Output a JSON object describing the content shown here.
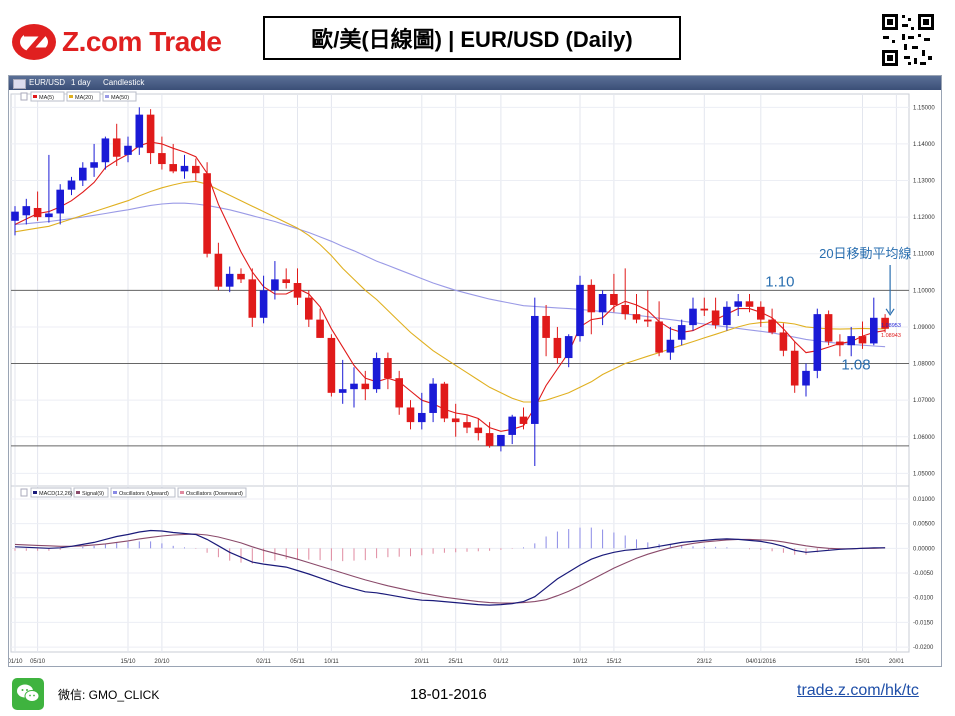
{
  "header": {
    "brand": "Z.com Trade",
    "title": "歐/美(日線圖) | EUR/USD  (Daily)"
  },
  "toolbar": {
    "symbol": "EUR/USD",
    "period": "1 day",
    "style": "Candlestick"
  },
  "colors": {
    "up": "#1a1ad6",
    "down": "#e01a1a",
    "ma5": "#e01a1a",
    "ma20": "#e0b020",
    "ma50": "#9a9ae6",
    "macd": "#1a1a7a",
    "signal": "#8a4a6a",
    "osc_up": "#8a8ae6",
    "osc_down": "#e08aa0",
    "annotation": "#2a6fb0"
  },
  "chart_data": [
    {
      "type": "candlestick",
      "legend": [
        "MA(5)",
        "MA(20)",
        "MA(50)"
      ],
      "ylim": [
        1.046,
        1.152
      ],
      "y_ticks": [
        1.05,
        1.06,
        1.07,
        1.08,
        1.09,
        1.1,
        1.11,
        1.12,
        1.13,
        1.14,
        1.15
      ],
      "y_tick_labels": [
        "1.05000",
        "1.06000",
        "1.07000",
        "1.08000",
        "1.09000",
        "1.10000",
        "1.11000",
        "1.12000",
        "1.13000",
        "1.14000",
        "1.15000"
      ],
      "x_tick_labels": [
        {
          "label": "01/10",
          "index": 0
        },
        {
          "label": "05/10",
          "index": 2
        },
        {
          "label": "15/10",
          "index": 10
        },
        {
          "label": "20/10",
          "index": 13
        },
        {
          "label": "02/11",
          "index": 22
        },
        {
          "label": "05/11",
          "index": 25
        },
        {
          "label": "10/11",
          "index": 28
        },
        {
          "label": "20/11",
          "index": 36
        },
        {
          "label": "25/11",
          "index": 39
        },
        {
          "label": "01/12",
          "index": 43
        },
        {
          "label": "10/12",
          "index": 50
        },
        {
          "label": "15/12",
          "index": 53
        },
        {
          "label": "23/12",
          "index": 61
        },
        {
          "label": "04/01/2016",
          "index": 66
        },
        {
          "label": "15/01",
          "index": 75
        },
        {
          "label": "20/01",
          "index": 78
        }
      ],
      "candles": [
        [
          1.119,
          1.123,
          1.115,
          1.1215
        ],
        [
          1.1205,
          1.125,
          1.118,
          1.123
        ],
        [
          1.1225,
          1.127,
          1.119,
          1.12
        ],
        [
          1.12,
          1.137,
          1.1185,
          1.121
        ],
        [
          1.121,
          1.129,
          1.118,
          1.1275
        ],
        [
          1.1275,
          1.131,
          1.126,
          1.13
        ],
        [
          1.13,
          1.135,
          1.1285,
          1.1335
        ],
        [
          1.1335,
          1.14,
          1.131,
          1.135
        ],
        [
          1.135,
          1.142,
          1.133,
          1.1415
        ],
        [
          1.1415,
          1.1455,
          1.134,
          1.1365
        ],
        [
          1.137,
          1.142,
          1.135,
          1.1395
        ],
        [
          1.139,
          1.15,
          1.137,
          1.148
        ],
        [
          1.148,
          1.1495,
          1.1345,
          1.1375
        ],
        [
          1.1375,
          1.142,
          1.133,
          1.1345
        ],
        [
          1.1345,
          1.14,
          1.132,
          1.1325
        ],
        [
          1.1325,
          1.137,
          1.1305,
          1.134
        ],
        [
          1.134,
          1.136,
          1.13,
          1.132
        ],
        [
          1.132,
          1.135,
          1.109,
          1.11
        ],
        [
          1.11,
          1.113,
          1.1,
          1.101
        ],
        [
          1.101,
          1.1065,
          1.0995,
          1.1045
        ],
        [
          1.1045,
          1.106,
          1.102,
          1.103
        ],
        [
          1.103,
          1.106,
          1.09,
          1.0925
        ],
        [
          1.0925,
          1.104,
          1.091,
          1.1
        ],
        [
          1.1,
          1.108,
          1.0975,
          1.103
        ],
        [
          1.103,
          1.106,
          1.1005,
          1.102
        ],
        [
          1.102,
          1.106,
          1.096,
          1.098
        ],
        [
          1.098,
          1.1,
          1.09,
          1.092
        ],
        [
          1.092,
          1.095,
          1.087,
          1.087
        ],
        [
          1.087,
          1.088,
          1.071,
          1.072
        ],
        [
          1.072,
          1.081,
          1.069,
          1.073
        ],
        [
          1.073,
          1.079,
          1.068,
          1.0745
        ],
        [
          1.0745,
          1.078,
          1.07,
          1.073
        ],
        [
          1.073,
          1.083,
          1.072,
          1.0815
        ],
        [
          1.0815,
          1.083,
          1.073,
          1.076
        ],
        [
          1.076,
          1.078,
          1.066,
          1.068
        ],
        [
          1.068,
          1.07,
          1.062,
          1.064
        ],
        [
          1.064,
          1.072,
          1.062,
          1.0665
        ],
        [
          1.0665,
          1.076,
          1.064,
          1.0745
        ],
        [
          1.0745,
          1.075,
          1.064,
          1.065
        ],
        [
          1.065,
          1.069,
          1.06,
          1.064
        ],
        [
          1.064,
          1.066,
          1.061,
          1.0625
        ],
        [
          1.0625,
          1.065,
          1.059,
          1.061
        ],
        [
          1.061,
          1.064,
          1.057,
          1.0575
        ],
        [
          1.0575,
          1.06,
          1.056,
          1.0605
        ],
        [
          1.0605,
          1.066,
          1.058,
          1.0655
        ],
        [
          1.0655,
          1.068,
          1.062,
          1.0635
        ],
        [
          1.0635,
          1.098,
          1.052,
          1.093
        ],
        [
          1.093,
          1.096,
          1.082,
          1.087
        ],
        [
          1.087,
          1.09,
          1.08,
          1.0815
        ],
        [
          1.0815,
          1.088,
          1.079,
          1.0875
        ],
        [
          1.0875,
          1.104,
          1.086,
          1.1015
        ],
        [
          1.1015,
          1.103,
          1.088,
          1.094
        ],
        [
          1.094,
          1.1,
          1.0905,
          1.099
        ],
        [
          1.099,
          1.1045,
          1.094,
          1.096
        ],
        [
          1.096,
          1.106,
          1.092,
          1.0935
        ],
        [
          1.0935,
          1.099,
          1.091,
          1.092
        ],
        [
          1.092,
          1.1,
          1.09,
          1.0915
        ],
        [
          1.0915,
          1.097,
          1.082,
          1.083
        ],
        [
          1.083,
          1.09,
          1.081,
          1.0865
        ],
        [
          1.0865,
          1.092,
          1.085,
          1.0905
        ],
        [
          1.0905,
          1.098,
          1.089,
          1.095
        ],
        [
          1.095,
          1.098,
          1.093,
          1.0945
        ],
        [
          1.0945,
          1.098,
          1.0895,
          1.0905
        ],
        [
          1.0905,
          1.097,
          1.089,
          1.0955
        ],
        [
          1.0955,
          1.099,
          1.093,
          1.097
        ],
        [
          1.097,
          1.099,
          1.094,
          1.0955
        ],
        [
          1.0955,
          1.097,
          1.09,
          1.092
        ],
        [
          1.092,
          1.095,
          1.088,
          1.0885
        ],
        [
          1.0885,
          1.091,
          1.082,
          1.0835
        ],
        [
          1.0835,
          1.086,
          1.072,
          1.074
        ],
        [
          1.074,
          1.08,
          1.071,
          1.078
        ],
        [
          1.078,
          1.095,
          1.076,
          1.0935
        ],
        [
          1.0935,
          1.0945,
          1.085,
          1.086
        ],
        [
          1.086,
          1.088,
          1.082,
          1.085
        ],
        [
          1.085,
          1.09,
          1.082,
          1.0875
        ],
        [
          1.0875,
          1.0915,
          1.084,
          1.0855
        ],
        [
          1.0855,
          1.098,
          1.085,
          1.0925
        ],
        [
          1.0925,
          1.0935,
          1.0885,
          1.0895
        ]
      ],
      "ma5": [
        1.118,
        1.1195,
        1.121,
        1.1215,
        1.1228,
        1.1245,
        1.1268,
        1.1295,
        1.1335,
        1.1355,
        1.1372,
        1.1395,
        1.1405,
        1.14,
        1.1388,
        1.1378,
        1.1365,
        1.132,
        1.1235,
        1.117,
        1.1105,
        1.105,
        1.101,
        1.099,
        1.099,
        1.1005,
        1.099,
        1.0955,
        1.0895,
        1.0845,
        1.0795,
        1.076,
        1.075,
        1.076,
        1.075,
        1.0725,
        1.07,
        1.069,
        1.0675,
        1.0665,
        1.066,
        1.065,
        1.0625,
        1.0615,
        1.062,
        1.063,
        1.068,
        1.074,
        1.0785,
        1.083,
        1.09,
        1.092,
        1.0925,
        1.0955,
        1.097,
        1.096,
        1.0945,
        1.0915,
        1.0895,
        1.0885,
        1.089,
        1.0905,
        1.092,
        1.0935,
        1.095,
        1.095,
        1.094,
        1.0925,
        1.0895,
        1.086,
        1.083,
        1.0835,
        1.0845,
        1.0855,
        1.086,
        1.0875,
        1.0885,
        1.089
      ],
      "ma20": [
        1.116,
        1.1165,
        1.117,
        1.1175,
        1.1185,
        1.1195,
        1.1205,
        1.1215,
        1.1225,
        1.1235,
        1.1245,
        1.1258,
        1.127,
        1.128,
        1.1288,
        1.1295,
        1.1298,
        1.129,
        1.1275,
        1.126,
        1.1245,
        1.123,
        1.1215,
        1.12,
        1.1185,
        1.117,
        1.115,
        1.1125,
        1.1095,
        1.106,
        1.103,
        1.1,
        1.0975,
        1.0945,
        1.0915,
        1.0885,
        1.086,
        1.0835,
        1.0815,
        1.0795,
        1.0775,
        1.0755,
        1.0735,
        1.072,
        1.0705,
        1.0695,
        1.0695,
        1.07,
        1.071,
        1.072,
        1.0735,
        1.075,
        1.077,
        1.0785,
        1.08,
        1.081,
        1.082,
        1.083,
        1.084,
        1.085,
        1.086,
        1.087,
        1.088,
        1.089,
        1.09,
        1.0908,
        1.0912,
        1.0914,
        1.0912,
        1.0908,
        1.09,
        1.0897,
        1.0895,
        1.0894,
        1.0895,
        1.0896,
        1.0895,
        1.0895
      ],
      "ma50": [
        1.118,
        1.1182,
        1.1185,
        1.1188,
        1.1192,
        1.1196,
        1.12,
        1.1205,
        1.121,
        1.1215,
        1.122,
        1.1226,
        1.1232,
        1.1236,
        1.1238,
        1.1238,
        1.1236,
        1.1232,
        1.1226,
        1.122,
        1.1212,
        1.1204,
        1.1196,
        1.1188,
        1.1178,
        1.1168,
        1.1158,
        1.1146,
        1.1134,
        1.112,
        1.1108,
        1.1094,
        1.108,
        1.1068,
        1.1056,
        1.1044,
        1.1032,
        1.102,
        1.101,
        1.1,
        1.0992,
        1.0984,
        1.0976,
        1.097,
        1.0964,
        1.0958,
        1.0956,
        1.0954,
        1.0952,
        1.095,
        1.0948,
        1.0945,
        1.0942,
        1.0939,
        1.0936,
        1.0932,
        1.0928,
        1.0924,
        1.092,
        1.0916,
        1.0912,
        1.0908,
        1.0904,
        1.09,
        1.0896,
        1.0892,
        1.0888,
        1.0884,
        1.0878,
        1.0872,
        1.0866,
        1.0862,
        1.0858,
        1.0855,
        1.0852,
        1.085,
        1.0848,
        1.0846
      ],
      "horizontal_lines": [
        1.1,
        1.08,
        1.0575
      ],
      "last_price_labels": [
        "1.08953",
        "1.08943"
      ],
      "annotations": [
        {
          "text": "1.10",
          "price": 1.1,
          "index": 61
        },
        {
          "text": "1.08",
          "price": 1.08,
          "index": 68
        },
        {
          "text": "20日移動平均線",
          "price": 1.0925,
          "index": 77
        }
      ]
    },
    {
      "type": "line",
      "legend": [
        "MACD(12,26)",
        "Signal(9)",
        "Oscillators (Upward)",
        "Oscillators (Downward)"
      ],
      "ylim": [
        -0.021,
        0.011
      ],
      "y_ticks": [
        0.01,
        0.005,
        0.0,
        -0.005,
        -0.01,
        -0.015,
        -0.02
      ],
      "y_tick_labels": [
        "0.01000",
        "0.00500",
        "0.00000",
        "-0.0050",
        "-0.0100",
        "-0.0150",
        "-0.0200"
      ],
      "macd": [
        0.0003,
        0.0002,
        0.0001,
        0.0,
        0.0001,
        0.0004,
        0.0008,
        0.0012,
        0.0018,
        0.0024,
        0.0028,
        0.0033,
        0.0036,
        0.0035,
        0.0032,
        0.003,
        0.0028,
        0.0018,
        0.0005,
        -0.0008,
        -0.0018,
        -0.0028,
        -0.0032,
        -0.0035,
        -0.0038,
        -0.0045,
        -0.0052,
        -0.006,
        -0.0068,
        -0.0076,
        -0.0082,
        -0.0088,
        -0.009,
        -0.0094,
        -0.0098,
        -0.0102,
        -0.0105,
        -0.0106,
        -0.0108,
        -0.011,
        -0.0112,
        -0.0114,
        -0.0115,
        -0.0114,
        -0.0112,
        -0.0108,
        -0.0098,
        -0.008,
        -0.0062,
        -0.0048,
        -0.0034,
        -0.0022,
        -0.0014,
        -0.0008,
        -0.0004,
        -0.0002,
        0.0,
        0.0004,
        0.0008,
        0.0012,
        0.0014,
        0.0016,
        0.0018,
        0.0019,
        0.0018,
        0.0016,
        0.0014,
        0.001,
        0.0004,
        -0.0004,
        -0.0008,
        -0.0006,
        -0.0004,
        -0.0002,
        -0.0001,
        0.0,
        0.0001,
        0.0001
      ],
      "signal": [
        0.0008,
        0.0007,
        0.0006,
        0.0005,
        0.0004,
        0.0004,
        0.0005,
        0.0007,
        0.0009,
        0.0012,
        0.0015,
        0.0019,
        0.0022,
        0.0025,
        0.0027,
        0.0028,
        0.0029,
        0.0027,
        0.0023,
        0.0017,
        0.0011,
        0.0003,
        -0.0004,
        -0.001,
        -0.0016,
        -0.0022,
        -0.0029,
        -0.0036,
        -0.0043,
        -0.005,
        -0.0057,
        -0.0064,
        -0.007,
        -0.0076,
        -0.0081,
        -0.0086,
        -0.0091,
        -0.0095,
        -0.0099,
        -0.0102,
        -0.0105,
        -0.0108,
        -0.011,
        -0.0111,
        -0.0111,
        -0.011,
        -0.0108,
        -0.0104,
        -0.0096,
        -0.0087,
        -0.0076,
        -0.0064,
        -0.0052,
        -0.004,
        -0.003,
        -0.002,
        -0.0012,
        -0.0005,
        0.0001,
        0.0006,
        0.001,
        0.0013,
        0.0015,
        0.0017,
        0.0018,
        0.0018,
        0.0017,
        0.0016,
        0.0013,
        0.0009,
        0.0005,
        0.0002,
        0.0,
        -0.0001,
        -0.0001,
        0.0,
        0.0,
        0.0001
      ]
    }
  ],
  "footer": {
    "wechat_label": "微信: GMO_CLICK",
    "date": "18-01-2016",
    "url": "trade.z.com/hk/tc"
  }
}
